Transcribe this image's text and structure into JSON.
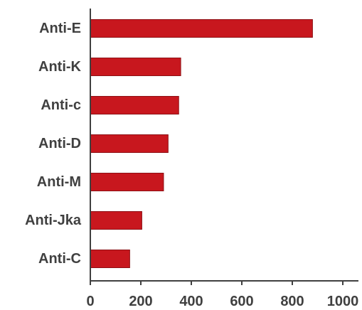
{
  "chart_data": {
    "type": "bar",
    "orientation": "horizontal",
    "title": "",
    "xlabel": "",
    "ylabel": "",
    "categories": [
      "Anti-E",
      "Anti-K",
      "Anti-c",
      "Anti-D",
      "Anti-M",
      "Anti-Jka",
      "Anti-C"
    ],
    "values": [
      880,
      358,
      350,
      308,
      290,
      204,
      156
    ],
    "xlim": [
      0,
      1000
    ],
    "x_ticks": [
      "0",
      "200",
      "400",
      "600",
      "800",
      "1000"
    ],
    "grid": false,
    "legend": "none",
    "colors": {
      "bar_fill": "#c8171e",
      "bar_stroke": "#8e1015",
      "axis": "#404040",
      "text": "#404040"
    }
  }
}
